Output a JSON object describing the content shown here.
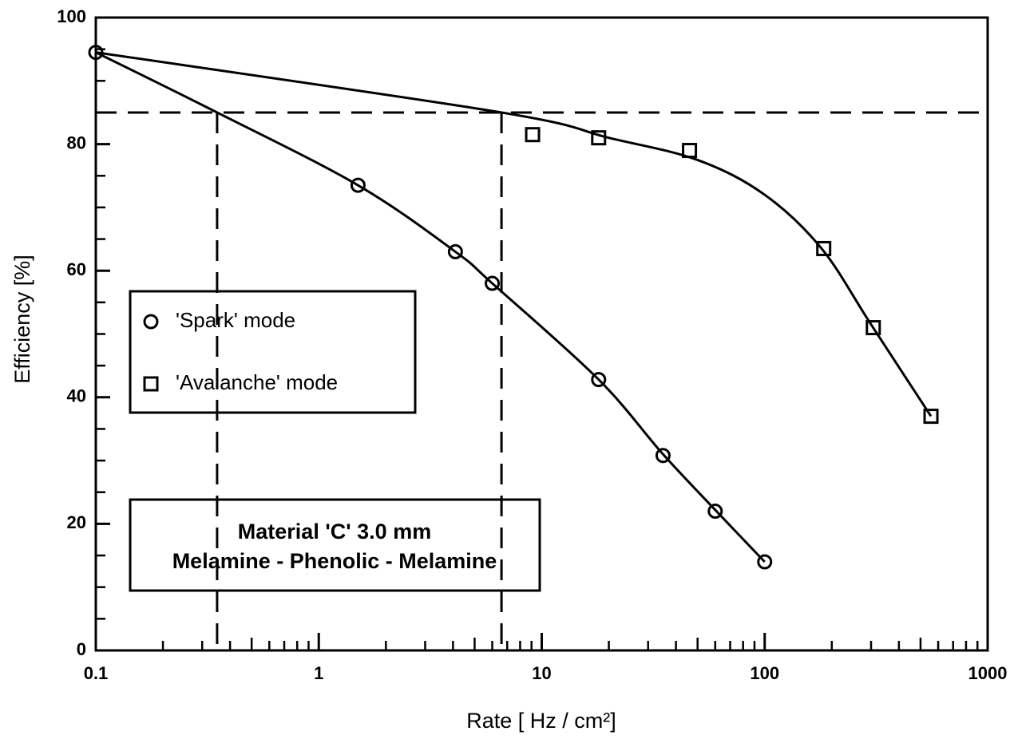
{
  "chart_data": {
    "type": "scatter",
    "x_label": "Rate [ Hz / cm²]",
    "y_label": "Efficiency [%]",
    "xscale": "log",
    "xlim": [
      0.1,
      1000
    ],
    "xticks": [
      0.1,
      1,
      10,
      100,
      1000
    ],
    "ylim": [
      0,
      100
    ],
    "yticks": [
      0,
      20,
      40,
      60,
      80,
      100
    ],
    "legend": "left",
    "series": [
      {
        "name": "'Spark' mode",
        "marker": "circle",
        "color": "#000000",
        "x": [
          0.1,
          1.5,
          4.1,
          6.0,
          18,
          35,
          60,
          100
        ],
        "values": [
          94.5,
          73.5,
          63,
          58,
          42.8,
          30.8,
          22,
          14
        ],
        "fit_x": [
          0.1,
          0.35,
          1.5,
          4.1,
          6.0,
          18,
          35,
          60,
          100
        ],
        "fit_values": [
          94.5,
          85,
          73.5,
          63,
          58,
          42.8,
          31,
          22.2,
          14
        ]
      },
      {
        "name": "'Avalanche' mode",
        "marker": "square",
        "color": "#000000",
        "x": [
          9.1,
          18,
          46,
          184,
          307,
          557
        ],
        "values": [
          81.5,
          81,
          79,
          63.5,
          51,
          37
        ],
        "fit_x": [
          0.1,
          6.6,
          20,
          50,
          100,
          180,
          300,
          557
        ],
        "fit_values": [
          94.5,
          85,
          81,
          77.5,
          72,
          63.5,
          51.5,
          37
        ]
      }
    ],
    "ref_y": 85,
    "ref_x": [
      0.35,
      6.6
    ],
    "annotation": [
      "Material 'C' 3.0 mm",
      "Melamine - Phenolic - Melamine"
    ]
  }
}
